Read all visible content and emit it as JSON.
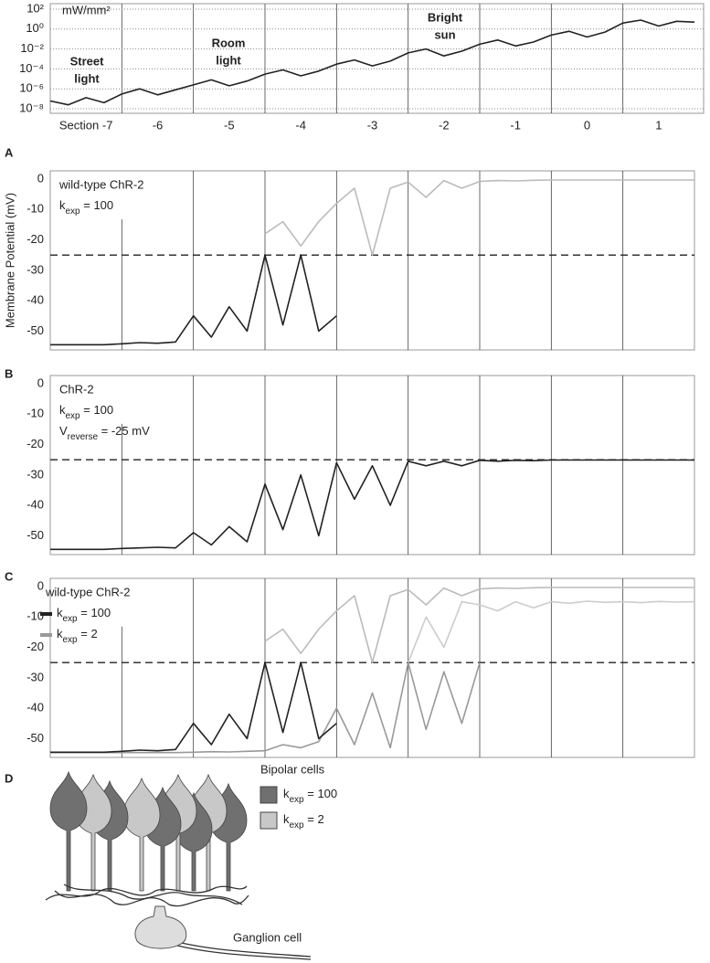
{
  "chart_data": [
    {
      "type": "logline",
      "unit": "mW/mm²",
      "categories": [
        "Section -7",
        "-6",
        "-5",
        "-4",
        "-3",
        "-2",
        "-1",
        "0",
        "1"
      ],
      "annotations": [
        [
          "Street",
          "light"
        ],
        [
          "Room",
          "light"
        ],
        [
          "Bright",
          "sun"
        ]
      ],
      "x": [
        -7.5,
        -7.25,
        -7,
        -6.75,
        -6.5,
        -6.25,
        -6,
        -5.75,
        -5.5,
        -5.25,
        -5,
        -4.75,
        -4.5,
        -4.25,
        -4,
        -3.75,
        -3.5,
        -3.25,
        -3,
        -2.75,
        -2.5,
        -2.25,
        -2,
        -1.75,
        -1.5,
        -1.25,
        -1,
        -0.75,
        -0.5,
        -0.25,
        0,
        0.25,
        0.5,
        0.75,
        1,
        1.25,
        1.5
      ],
      "xlim": [
        -7.5,
        1.5
      ],
      "series": [
        {
          "color": "#222",
          "values": [
            6e-08,
            2.5e-08,
            1.3e-07,
            4e-08,
            3e-07,
            1e-06,
            2.5e-07,
            8e-07,
            2.5e-06,
            8e-06,
            2e-06,
            6e-06,
            3e-05,
            8e-05,
            2e-05,
            6e-05,
            0.0003,
            0.0008,
            0.0002,
            0.0006,
            0.004,
            0.01,
            0.002,
            0.006,
            0.03,
            0.08,
            0.02,
            0.05,
            0.25,
            0.6,
            0.16,
            0.5,
            4,
            8,
            2,
            6,
            5
          ]
        }
      ],
      "ylim": [
        1e-08,
        100
      ],
      "log": true,
      "grid": true,
      "yticks": [
        {
          "value": 100,
          "label": "10²"
        },
        {
          "value": 1,
          "label": "10⁰"
        },
        {
          "value": 0.01,
          "label": "10⁻²"
        },
        {
          "value": 0.0001,
          "label": "10⁻⁴"
        },
        {
          "value": 1e-06,
          "label": "10⁻⁶"
        },
        {
          "value": 1e-08,
          "label": "10⁻⁸"
        }
      ]
    },
    {
      "type": "line",
      "label": "A",
      "ylabel": "Membrane Potential (mV)",
      "texts": [
        "wild-type ChR-2",
        [
          "k",
          "exp",
          " = 100"
        ]
      ],
      "x": [
        -7.5,
        -7.25,
        -7,
        -6.75,
        -6.5,
        -6.25,
        -6,
        -5.75,
        -5.5,
        -5.25,
        -5,
        -4.75,
        -4.5,
        -4.25,
        -4,
        -3.75,
        -3.5,
        -3.25,
        -3,
        -2.75,
        -2.5,
        -2.25,
        -2,
        -1.75,
        -1.5,
        -1.25,
        -1,
        -0.75,
        -0.5,
        -0.25,
        0,
        0.25,
        0.5,
        0.75,
        1,
        1.25,
        1.5
      ],
      "xlim": [
        -7.5,
        1.5
      ],
      "series": [
        {
          "color": "#222",
          "values": [
            -54.5,
            -54.5,
            -54.5,
            -54.5,
            -54.2,
            -53.8,
            -54.0,
            -53.6,
            -45,
            -52,
            -42,
            -50,
            -25,
            -48,
            -25,
            -50,
            -45,
            null,
            null,
            null,
            null,
            null,
            null,
            null,
            null,
            null,
            null,
            null,
            null,
            null,
            null,
            null,
            null,
            null,
            null,
            null,
            null
          ]
        },
        {
          "color": "#bbb",
          "values": [
            null,
            null,
            null,
            null,
            null,
            null,
            null,
            null,
            null,
            null,
            null,
            null,
            -18,
            -14,
            -22,
            -14,
            -8,
            -3,
            -25,
            -3,
            -1,
            -6,
            -0.5,
            -3,
            -0.8,
            -0.5,
            -0.6,
            -0.4,
            -0.3,
            -0.3,
            -0.3,
            -0.3,
            -0.3,
            -0.3,
            -0.3,
            -0.3,
            -0.3
          ]
        }
      ],
      "hline": -25,
      "ylim": [
        -56.2,
        2.7
      ],
      "yticks": [
        0,
        -10,
        -20,
        -30,
        -40,
        -50
      ]
    },
    {
      "type": "line",
      "label": "B",
      "texts": [
        "ChR-2",
        [
          "k",
          "exp",
          " = 100"
        ],
        [
          "V",
          "reverse",
          " = -25 mV"
        ]
      ],
      "x": [
        -7.5,
        -7.25,
        -7,
        -6.75,
        -6.5,
        -6.25,
        -6,
        -5.75,
        -5.5,
        -5.25,
        -5,
        -4.75,
        -4.5,
        -4.25,
        -4,
        -3.75,
        -3.5,
        -3.25,
        -3,
        -2.75,
        -2.5,
        -2.25,
        -2,
        -1.75,
        -1.5,
        -1.25,
        -1,
        -0.75,
        -0.5,
        -0.25,
        0,
        0.25,
        0.5,
        0.75,
        1,
        1.25,
        1.5
      ],
      "xlim": [
        -7.5,
        1.5
      ],
      "series": [
        {
          "color": "#222",
          "values": [
            -54.5,
            -54.5,
            -54.5,
            -54.5,
            -54.2,
            -54,
            -53.8,
            -54,
            -49,
            -53,
            -47,
            -52,
            -33,
            -48,
            -30,
            -50,
            -26,
            -38,
            -27,
            -40,
            -25.5,
            -27,
            -25.5,
            -27,
            -25.2,
            -25.5,
            -25.2,
            -25.3,
            -25.1,
            -25.1,
            -25.1,
            -25.1,
            -25.1,
            -25.1,
            -25.1,
            -25.1,
            -25.1
          ]
        }
      ],
      "hline": -25,
      "ylim": [
        -56.2,
        2.7
      ],
      "yticks": [
        0,
        -10,
        -20,
        -30,
        -40,
        -50
      ]
    },
    {
      "type": "line",
      "label": "C",
      "texts": [
        "wild-type ChR-2"
      ],
      "legend": [
        {
          "parts": [
            "k",
            "exp",
            " = 100"
          ],
          "color": "#222"
        },
        {
          "parts": [
            "k",
            "exp",
            " = 2"
          ],
          "color": "#999"
        }
      ],
      "x": [
        -7.5,
        -7.25,
        -7,
        -6.75,
        -6.5,
        -6.25,
        -6,
        -5.75,
        -5.5,
        -5.25,
        -5,
        -4.75,
        -4.5,
        -4.25,
        -4,
        -3.75,
        -3.5,
        -3.25,
        -3,
        -2.75,
        -2.5,
        -2.25,
        -2,
        -1.75,
        -1.5,
        -1.25,
        -1,
        -0.75,
        -0.5,
        -0.25,
        0,
        0.25,
        0.5,
        0.75,
        1,
        1.25,
        1.5
      ],
      "xlim": [
        -7.5,
        1.5
      ],
      "series": [
        {
          "color": "#ccc",
          "values": [
            null,
            null,
            null,
            null,
            null,
            null,
            null,
            null,
            null,
            null,
            null,
            null,
            null,
            null,
            null,
            null,
            null,
            null,
            null,
            null,
            -25,
            -10,
            -20,
            -5,
            -6,
            -8,
            -5,
            -7,
            -5,
            -5.5,
            -4.8,
            -5.2,
            -5,
            -5.3,
            -4.9,
            -5.1,
            -5
          ]
        },
        {
          "color": "#bbb",
          "values": [
            null,
            null,
            null,
            null,
            null,
            null,
            null,
            null,
            null,
            null,
            null,
            null,
            -18,
            -14,
            -22,
            -14,
            -8,
            -3,
            -25,
            -3,
            -1,
            -6,
            -0.5,
            -3,
            -0.8,
            -0.5,
            -0.6,
            -0.4,
            -0.3,
            -0.3,
            -0.3,
            -0.3,
            -0.3,
            -0.3,
            -0.3,
            -0.3,
            -0.3
          ]
        },
        {
          "color": "#999",
          "values": [
            -54.6,
            -54.6,
            -54.6,
            -54.6,
            -54.6,
            -54.6,
            -54.6,
            -54.6,
            -54.5,
            -54.3,
            -54.4,
            -54.2,
            -54,
            -52,
            -53,
            -51,
            -40,
            -52,
            -35,
            -53,
            -25,
            -47,
            -28,
            -45,
            -25,
            null,
            null,
            null,
            null,
            null,
            null,
            null,
            null,
            null,
            null,
            null,
            null
          ]
        },
        {
          "color": "#222",
          "values": [
            -54.5,
            -54.5,
            -54.5,
            -54.5,
            -54.2,
            -53.8,
            -54.0,
            -53.6,
            -45,
            -52,
            -42,
            -50,
            -25,
            -48,
            -25,
            -50,
            -45,
            null,
            null,
            null,
            null,
            null,
            null,
            null,
            null,
            null,
            null,
            null,
            null,
            null,
            null,
            null,
            null,
            null,
            null,
            null,
            null
          ]
        }
      ],
      "hline": -25,
      "ylim": [
        -56.2,
        2.7
      ],
      "yticks": [
        0,
        -10,
        -20,
        -30,
        -40,
        -50
      ]
    }
  ],
  "diagram": {
    "label": "D",
    "title": "Bipolar cells",
    "legend": [
      {
        "parts": [
          "k",
          "exp",
          " = 100"
        ],
        "color": "#707070"
      },
      {
        "parts": [
          "k",
          "exp",
          " = 2"
        ],
        "color": "#c8c8c8"
      }
    ],
    "ganglion": "Ganglion cell"
  }
}
